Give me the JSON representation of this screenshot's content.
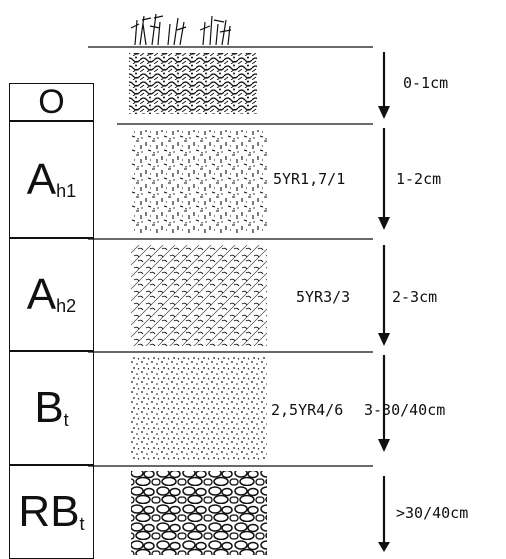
{
  "horizons": [
    {
      "id": "o",
      "label": "O",
      "sub": "",
      "color": "",
      "depth": "0-1cm",
      "texture": "organic"
    },
    {
      "id": "ah1",
      "label": "A",
      "sub": "h1",
      "color": "5YR1,7/1",
      "depth": "1-2cm",
      "texture": "fine-dashes"
    },
    {
      "id": "ah2",
      "label": "A",
      "sub": "h2",
      "color": "5YR3/3",
      "depth": "2-3cm",
      "texture": "hatched"
    },
    {
      "id": "bt",
      "label": "B",
      "sub": "t",
      "color": "2,5YR4/6",
      "depth": "3-30/40cm",
      "texture": "stipple"
    },
    {
      "id": "rbt",
      "label": "RB",
      "sub": "t",
      "color": "",
      "depth": ">30/40cm",
      "texture": "pebbles"
    }
  ],
  "colors": {
    "ink": "#111111",
    "background": "#ffffff"
  }
}
